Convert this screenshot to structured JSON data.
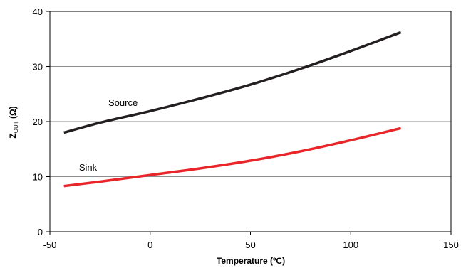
{
  "chart_data": {
    "type": "line",
    "xlabel": "Temperature (ºC)",
    "ylabel": {
      "main": "Z",
      "subscript": "OUT",
      "unit": " (Ω)"
    },
    "xlim": [
      -50,
      150
    ],
    "ylim": [
      0,
      40
    ],
    "xticks": [
      -50,
      0,
      50,
      100,
      150
    ],
    "yticks": [
      0,
      10,
      20,
      30,
      40
    ],
    "grid": "horizontal",
    "legend": "none",
    "series": [
      {
        "name": "Source",
        "color": "#231f20",
        "x": [
          -43,
          -25,
          0,
          25,
          50,
          75,
          100,
          125
        ],
        "y": [
          18.0,
          19.8,
          21.9,
          24.2,
          26.7,
          29.6,
          32.8,
          36.2
        ]
      },
      {
        "name": "Sink",
        "color": "#e8262a",
        "x": [
          -43,
          -25,
          0,
          25,
          50,
          75,
          100,
          125
        ],
        "y": [
          8.3,
          9.1,
          10.3,
          11.5,
          12.9,
          14.6,
          16.6,
          18.8
        ]
      }
    ],
    "annotations": [
      {
        "text": "Source",
        "series": 0
      },
      {
        "text": "Sink",
        "series": 1
      }
    ]
  }
}
